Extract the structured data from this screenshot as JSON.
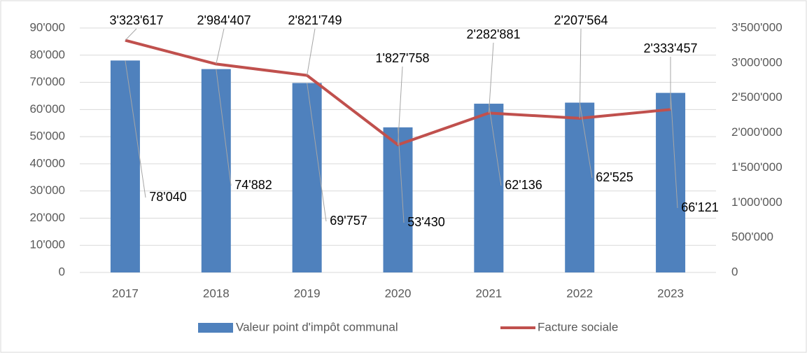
{
  "chart_data": {
    "type": "bar_line",
    "categories": [
      "2017",
      "2018",
      "2019",
      "2020",
      "2021",
      "2022",
      "2023"
    ],
    "series": [
      {
        "name": "Valeur point d'impôt communal",
        "color": "#4f81bd",
        "type": "bar",
        "values": [
          78040,
          74882,
          69757,
          53430,
          62136,
          62525,
          66121
        ],
        "value_labels": [
          "78'040",
          "74'882",
          "69'757",
          "53'430",
          "62'136",
          "62'525",
          "66'121"
        ]
      },
      {
        "name": "Facture sociale",
        "color": "#c0504d",
        "type": "line",
        "axis": "y2",
        "values": [
          3323617,
          2984407,
          2821749,
          1827758,
          2282881,
          2207564,
          2333457
        ],
        "value_labels": [
          "3'323'617",
          "2'984'407",
          "2'821'749",
          "1'827'758",
          "2'282'881",
          "2'207'564",
          "2'333'457"
        ]
      }
    ],
    "ylim": [
      0,
      90000
    ],
    "yticks": [
      0,
      {
        "value": 10000,
        "label": "10'000"
      },
      {
        "value": 20000,
        "label": "20'000"
      },
      {
        "value": 30000,
        "label": "30'000"
      },
      {
        "value": 40000,
        "label": "40'000"
      },
      {
        "value": 50000,
        "label": "50'000"
      },
      {
        "value": 60000,
        "label": "60'000"
      },
      {
        "value": 70000,
        "label": "70'000"
      },
      {
        "value": 80000,
        "label": "80'000"
      },
      {
        "value": 90000,
        "label": "90'000"
      }
    ],
    "y2lim": [
      0,
      3500000
    ],
    "y2ticks": [
      0,
      {
        "value": 500000,
        "label": "500'000"
      },
      {
        "value": 1000000,
        "label": "1'000'000"
      },
      {
        "value": 1500000,
        "label": "1'500'000"
      },
      {
        "value": 2000000,
        "label": "2'000'000"
      },
      {
        "value": 2500000,
        "label": "2'500'000"
      },
      {
        "value": 3000000,
        "label": "3'000'000"
      },
      {
        "value": 3500000,
        "label": "3'500'000"
      }
    ],
    "grid": true,
    "legend": "bottom"
  }
}
